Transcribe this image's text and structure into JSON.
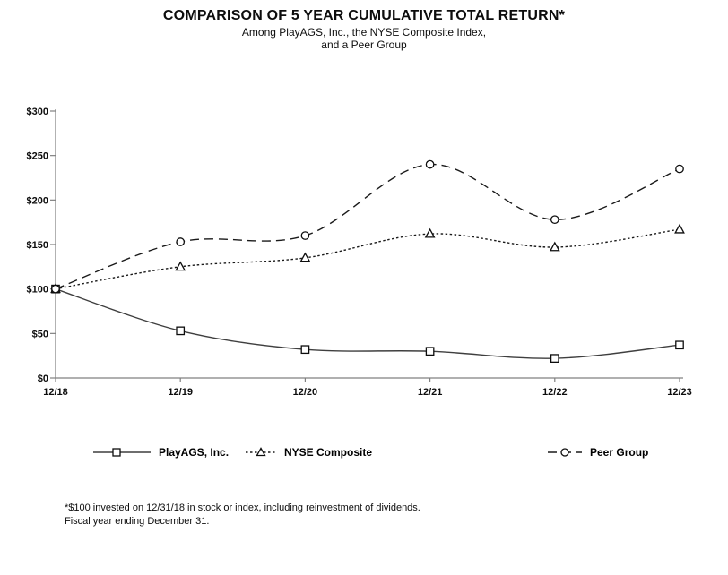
{
  "page": {
    "title": "COMPARISON OF 5 YEAR CUMULATIVE TOTAL RETURN*",
    "subtitle_line1": "Among PlayAGS, Inc., the NYSE Composite Index,",
    "subtitle_line2": "and a Peer Group",
    "footnote_line1": "*$100 invested on 12/31/18 in stock or index, including reinvestment of dividends.",
    "footnote_line2": "Fiscal year ending December 31."
  },
  "chart_data": {
    "type": "line",
    "title": "COMPARISON OF 5 YEAR CUMULATIVE TOTAL RETURN*",
    "subtitle": "Among PlayAGS, Inc., the NYSE Composite Index, and a Peer Group",
    "categories": [
      "12/18",
      "12/19",
      "12/20",
      "12/21",
      "12/22",
      "12/23"
    ],
    "series": [
      {
        "name": "PlayAGS, Inc.",
        "values": [
          100,
          53,
          32,
          30,
          22,
          37
        ],
        "marker": "square",
        "line_style": "solid",
        "color": "#3f3f3f"
      },
      {
        "name": "NYSE Composite",
        "values": [
          100,
          125,
          135,
          162,
          147,
          167
        ],
        "marker": "triangle",
        "line_style": "dotted",
        "color": "#1a1a1a"
      },
      {
        "name": "Peer Group",
        "values": [
          100,
          153,
          160,
          240,
          178,
          235
        ],
        "marker": "circle",
        "line_style": "dashed",
        "color": "#1a1a1a"
      }
    ],
    "xlabel": "",
    "ylabel": "",
    "ylim": [
      0,
      300
    ],
    "y_tick_interval": 50,
    "y_tick_values": [
      0,
      50,
      100,
      150,
      200,
      250,
      300
    ],
    "y_tick_labels": [
      "$0",
      "$50",
      "$100",
      "$150",
      "$200",
      "$250",
      "$300"
    ],
    "grid": false,
    "smoothed_lines": true,
    "legend_position": "bottom",
    "axis_color": "#808080",
    "marker_fill": "#ffffff",
    "marker_stroke": "#0d0d0d",
    "text_color": "#0d0d0d"
  }
}
